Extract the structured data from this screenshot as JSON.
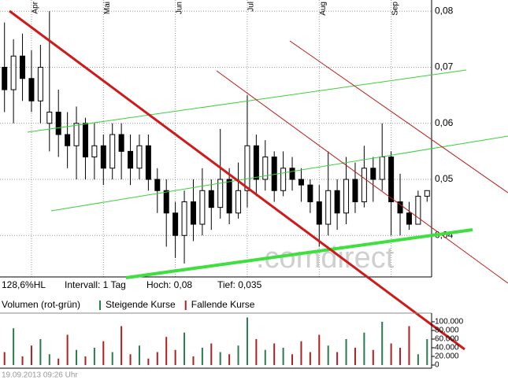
{
  "chart_data": [
    {
      "type": "candlestick",
      "categories": [
        null,
        null,
        null,
        "Apr",
        null,
        null,
        null,
        null,
        null,
        null,
        null,
        "Mai",
        null,
        null,
        null,
        null,
        null,
        null,
        null,
        "Jun",
        null,
        null,
        null,
        null,
        null,
        null,
        null,
        "Jul",
        null,
        null,
        null,
        null,
        null,
        null,
        null,
        "Aug",
        null,
        null,
        null,
        null,
        null,
        null,
        null,
        "Sep",
        null,
        null,
        null,
        null
      ],
      "open": [
        0.07,
        0.066,
        0.072,
        0.068,
        0.064,
        0.06,
        0.062,
        0.058,
        0.056,
        0.06,
        0.054,
        0.056,
        0.052,
        0.058,
        0.055,
        0.052,
        0.056,
        0.05,
        0.048,
        0.044,
        0.04,
        0.046,
        0.042,
        0.048,
        0.045,
        0.05,
        0.044,
        0.048,
        0.056,
        0.05,
        0.054,
        0.048,
        0.052,
        0.05,
        0.049,
        0.046,
        0.042,
        0.048,
        0.044,
        0.05,
        0.046,
        0.052,
        0.05,
        0.054,
        0.046,
        0.044,
        0.042,
        0.047
      ],
      "high": [
        0.078,
        0.075,
        0.076,
        0.073,
        0.074,
        0.08,
        0.066,
        0.062,
        0.063,
        0.061,
        0.06,
        0.058,
        0.06,
        0.06,
        0.058,
        0.058,
        0.058,
        0.052,
        0.05,
        0.046,
        0.048,
        0.05,
        0.052,
        0.05,
        0.059,
        0.052,
        0.053,
        0.065,
        0.058,
        0.057,
        0.055,
        0.055,
        0.054,
        0.052,
        0.05,
        0.049,
        0.055,
        0.05,
        0.054,
        0.053,
        0.056,
        0.054,
        0.06,
        0.055,
        0.051,
        0.046,
        0.048,
        0.048
      ],
      "low": [
        0.062,
        0.06,
        0.064,
        0.062,
        0.06,
        0.055,
        0.054,
        0.052,
        0.05,
        0.05,
        0.05,
        0.049,
        0.05,
        0.05,
        0.049,
        0.05,
        0.048,
        0.044,
        0.038,
        0.036,
        0.035,
        0.039,
        0.04,
        0.041,
        0.043,
        0.042,
        0.043,
        0.045,
        0.047,
        0.048,
        0.046,
        0.047,
        0.048,
        0.046,
        0.044,
        0.038,
        0.04,
        0.041,
        0.042,
        0.044,
        0.045,
        0.046,
        0.048,
        0.04,
        0.04,
        0.041,
        0.042,
        0.046
      ],
      "close": [
        0.066,
        0.072,
        0.068,
        0.064,
        0.07,
        0.062,
        0.058,
        0.056,
        0.06,
        0.054,
        0.056,
        0.052,
        0.058,
        0.055,
        0.052,
        0.056,
        0.05,
        0.048,
        0.044,
        0.04,
        0.046,
        0.042,
        0.048,
        0.045,
        0.05,
        0.044,
        0.048,
        0.056,
        0.05,
        0.054,
        0.048,
        0.052,
        0.05,
        0.049,
        0.046,
        0.042,
        0.048,
        0.044,
        0.05,
        0.046,
        0.052,
        0.05,
        0.054,
        0.046,
        0.044,
        0.042,
        0.047,
        0.048
      ],
      "rising_color": "#ffffff",
      "falling_color": "#000000",
      "ylim": [
        0.0326,
        0.082
      ],
      "yticks": [
        {
          "value": 0.04,
          "label": "0,04"
        },
        {
          "value": 0.05,
          "label": "0,05"
        },
        {
          "value": 0.06,
          "label": "0,06"
        },
        {
          "value": 0.07,
          "label": "0,07"
        },
        {
          "value": 0.08,
          "label": "0,08"
        }
      ],
      "grid": true,
      "annotations": [
        "128,6%HL",
        "Intervall: 1 Tag",
        "Hoch: 0,08",
        "Tief: 0,035"
      ],
      "watermark": ".comdirect"
    },
    {
      "type": "bar",
      "title": "Volumen (rot-grün)",
      "series": [
        {
          "name": "Steigende Kurse",
          "color": "#2a7a52",
          "values": [
            null,
            85000,
            null,
            null,
            60000,
            25000,
            null,
            null,
            35000,
            null,
            40000,
            null,
            30000,
            null,
            null,
            45000,
            null,
            null,
            null,
            null,
            75000,
            null,
            40000,
            null,
            30000,
            null,
            45000,
            110000,
            null,
            35000,
            null,
            40000,
            null,
            null,
            null,
            null,
            45000,
            null,
            60000,
            null,
            75000,
            null,
            100000,
            null,
            null,
            null,
            25000,
            60000
          ]
        },
        {
          "name": "Fallende Kurse",
          "color": "#b02020",
          "values": [
            30000,
            null,
            20000,
            45000,
            null,
            null,
            15000,
            70000,
            null,
            20000,
            null,
            55000,
            null,
            90000,
            25000,
            null,
            15000,
            30000,
            65000,
            35000,
            null,
            20000,
            null,
            50000,
            null,
            25000,
            null,
            null,
            60000,
            null,
            50000,
            null,
            25000,
            55000,
            30000,
            70000,
            null,
            30000,
            null,
            40000,
            null,
            35000,
            null,
            50000,
            40000,
            90000,
            null,
            null
          ]
        }
      ],
      "ylim": [
        0,
        120000
      ],
      "yticks": [
        0,
        {
          "value": 20000,
          "label": "20.000"
        },
        {
          "value": 40000,
          "label": "40.000"
        },
        {
          "value": 60000,
          "label": "60.000"
        },
        {
          "value": 80000,
          "label": "80.000"
        },
        {
          "value": 100000,
          "label": "100.000"
        }
      ]
    }
  ],
  "footer": "19.09.2013 09:26 Uhr"
}
